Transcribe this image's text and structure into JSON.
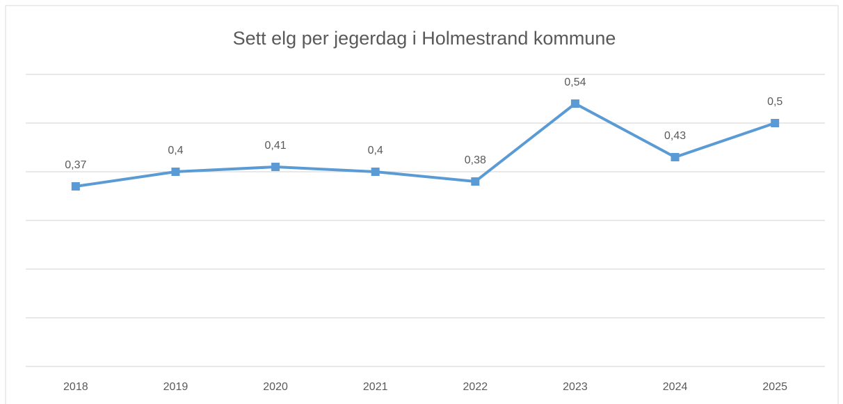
{
  "chart_data": {
    "type": "line",
    "title": "Sett elg per jegerdag i Holmestrand kommune",
    "categories": [
      "2018",
      "2019",
      "2020",
      "2021",
      "2022",
      "2023",
      "2024",
      "2025"
    ],
    "series": [
      {
        "name": null,
        "color": "#5b9bd5",
        "values": [
          0.37,
          0.4,
          0.41,
          0.4,
          0.38,
          0.54,
          0.43,
          0.5
        ],
        "value_labels": [
          "0,37",
          "0,4",
          "0,41",
          "0,4",
          "0,38",
          "0,54",
          "0,43",
          "0,5"
        ]
      }
    ],
    "ylim": [
      0,
      0.6
    ],
    "yticks": [
      0,
      0.1,
      0.2,
      0.3,
      0.4,
      0.5,
      0.6
    ],
    "grid": true
  }
}
